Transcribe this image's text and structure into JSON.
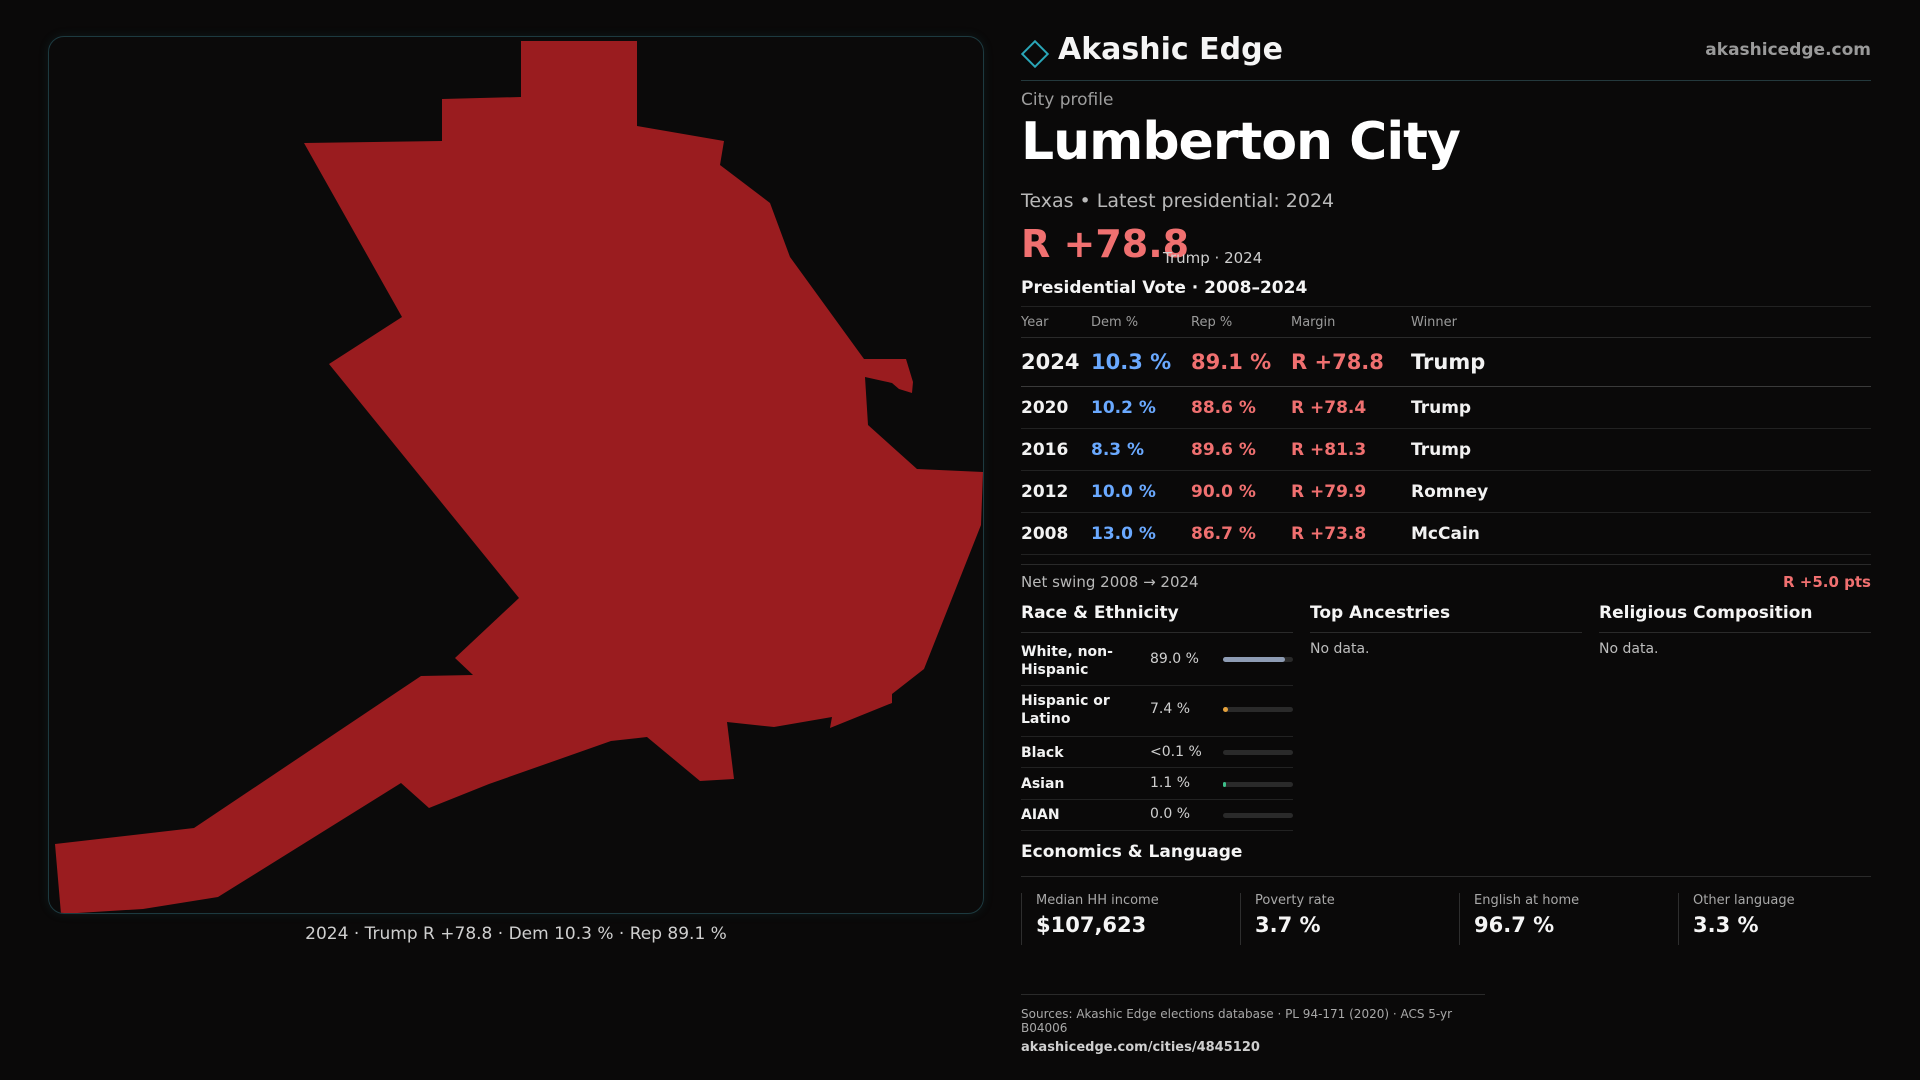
{
  "colors": {
    "republican": "#f07070",
    "democrat": "#6aa9ff",
    "map_fill": "#9a1c1f",
    "accent": "#2aa6b8"
  },
  "map": {
    "caption": "2024 · Trump R +78.8 · Dem 10.3 % · Rep 89.1 %",
    "winner_party": "R"
  },
  "header": {
    "brand_name": "Akashic Edge",
    "brand_url": "akashicedge.com",
    "logo_icon": "diamond-icon"
  },
  "profile": {
    "kicker": "City profile",
    "city": "Lumberton City",
    "subline": "Texas • Latest presidential: 2024",
    "headline_margin": "R +78.8",
    "headline_note": "Trump · 2024"
  },
  "vote": {
    "title": "Presidential Vote · 2008–2024",
    "headers": {
      "year": "Year",
      "dem": "Dem %",
      "rep": "Rep %",
      "margin": "Margin",
      "winner": "Winner"
    },
    "rows": [
      {
        "year": "2024",
        "dem": "10.3 %",
        "rep": "89.1 %",
        "margin": "R +78.8",
        "winner": "Trump"
      },
      {
        "year": "2020",
        "dem": "10.2 %",
        "rep": "88.6 %",
        "margin": "R +78.4",
        "winner": "Trump"
      },
      {
        "year": "2016",
        "dem": "8.3 %",
        "rep": "89.6 %",
        "margin": "R +81.3",
        "winner": "Trump"
      },
      {
        "year": "2012",
        "dem": "10.0 %",
        "rep": "90.0 %",
        "margin": "R +79.9",
        "winner": "Romney"
      },
      {
        "year": "2008",
        "dem": "13.0 %",
        "rep": "86.7 %",
        "margin": "R +73.8",
        "winner": "McCain"
      }
    ],
    "swing_label": "Net swing 2008 → 2024",
    "swing_value": "R +5.0 pts"
  },
  "race": {
    "title": "Race & Ethnicity",
    "rows": [
      {
        "label": "White, non-Hispanic",
        "value": "89.0 %",
        "share": 0.89,
        "color": "#8e9cb4"
      },
      {
        "label": "Hispanic or Latino",
        "value": "7.4 %",
        "share": 0.074,
        "color": "#e6a23c"
      },
      {
        "label": "Black",
        "value": "<0.1 %",
        "share": 0.0,
        "color": "#888888"
      },
      {
        "label": "Asian",
        "value": "1.1 %",
        "share": 0.011,
        "color": "#3dbf8a"
      },
      {
        "label": "AIAN",
        "value": "0.0 %",
        "share": 0.0,
        "color": "#888888"
      }
    ]
  },
  "ancestries": {
    "title": "Top Ancestries",
    "empty": "No data."
  },
  "religion": {
    "title": "Religious Composition",
    "empty": "No data."
  },
  "economics": {
    "title": "Economics & Language",
    "cards": [
      {
        "label": "Median HH income",
        "value": "$107,623"
      },
      {
        "label": "Poverty rate",
        "value": "3.7 %"
      },
      {
        "label": "English at home",
        "value": "96.7 %"
      },
      {
        "label": "Other language",
        "value": "3.3 %"
      }
    ]
  },
  "footer": {
    "sources": "Sources: Akashic Edge elections database · PL 94-171 (2020) · ACS 5-yr B04006",
    "url": "akashicedge.com/cities/4845120"
  }
}
